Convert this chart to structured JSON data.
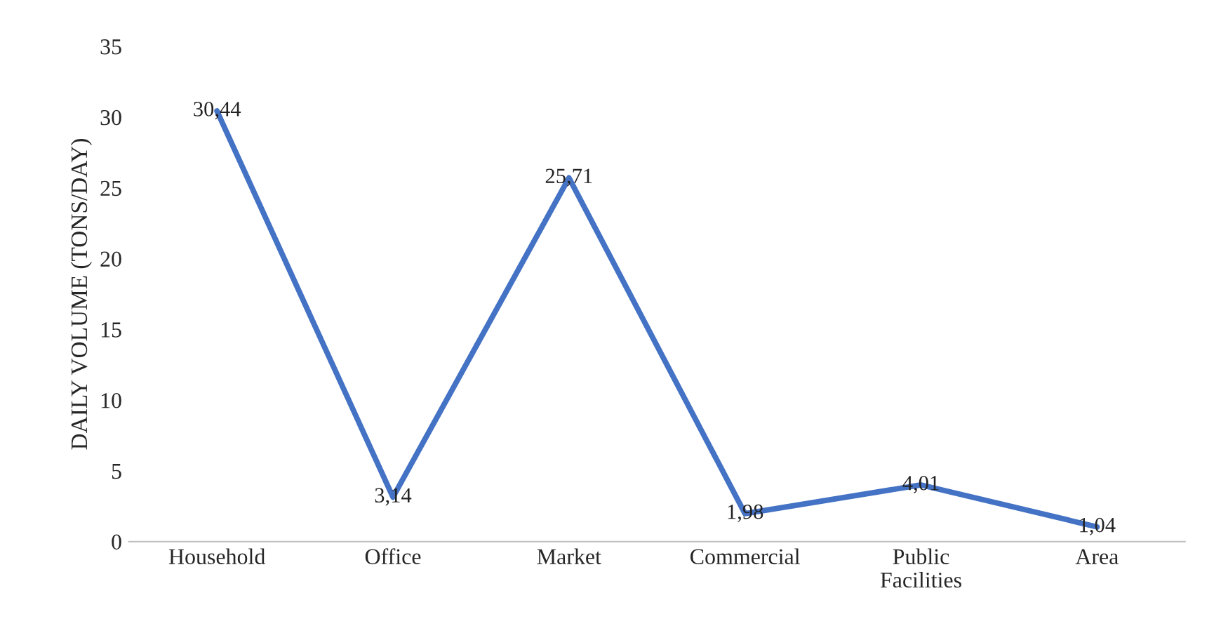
{
  "chart_data": {
    "type": "line",
    "ylabel": "DAILY VOLUME (TONS/DAY)",
    "categories": [
      "Household",
      "Office",
      "Market",
      "Commercial",
      "Public\nFacilities",
      "Area"
    ],
    "series": [
      {
        "color": "#4472c4",
        "values": [
          30.44,
          3.14,
          25.71,
          1.98,
          4.01,
          1.04
        ],
        "value_labels": [
          "30,44",
          "3,14",
          "25,71",
          "1,98",
          "4,01",
          "1,04"
        ]
      }
    ],
    "ylim": [
      0,
      35
    ],
    "yticks": [
      0,
      5,
      10,
      15,
      20,
      25,
      30,
      35
    ],
    "grid": false,
    "legend": false,
    "marker": "none",
    "line_style": "solid"
  }
}
